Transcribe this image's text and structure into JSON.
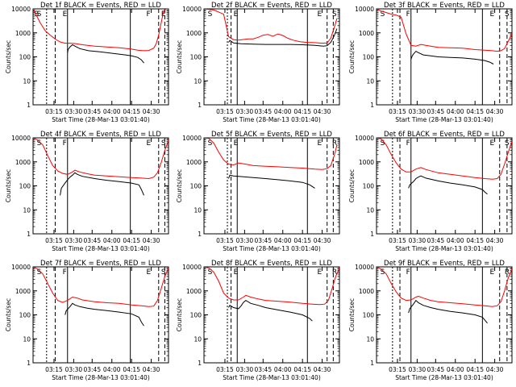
{
  "chart_data": [
    {
      "type": "line",
      "title": "Det 1f BLACK = Events, RED = LLD",
      "xlabel": "Start Time (28-Mar-13 03:01:40)",
      "ylabel": "Counts/sec",
      "yscale": "log",
      "ylim": [
        1,
        10000
      ],
      "xlim_min": [
        0,
        110
      ],
      "xtick_labels": [
        "03:15",
        "03:30",
        "03:45",
        "04:00",
        "04:15",
        "04:30"
      ],
      "ytick_labels": [
        "1",
        "10",
        "100",
        "1000",
        "10000"
      ],
      "corner_marks": [
        "S",
        "E",
        "F",
        "E",
        "S"
      ],
      "series": [
        {
          "color": "#000000",
          "x": [
            28,
            28.5,
            30,
            32,
            34,
            38,
            45,
            55,
            65,
            75,
            80,
            85,
            88,
            90
          ],
          "y": [
            150,
            200,
            260,
            320,
            280,
            220,
            180,
            160,
            140,
            120,
            110,
            95,
            75,
            55
          ]
        },
        {
          "color": "#ff0000",
          "x": [
            0,
            3,
            6,
            10,
            14,
            18,
            22,
            26,
            30,
            34,
            40,
            50,
            60,
            70,
            80,
            85,
            90,
            94,
            98,
            100,
            102,
            104,
            106,
            108,
            110
          ],
          "y": [
            10000,
            5000,
            2500,
            1200,
            800,
            550,
            420,
            370,
            370,
            360,
            320,
            280,
            260,
            240,
            210,
            190,
            180,
            185,
            230,
            350,
            800,
            2500,
            8000,
            10000,
            10000
          ]
        }
      ]
    },
    {
      "type": "line",
      "title": "Det 2f BLACK = Events, RED = LLD",
      "xlabel": "Start Time (28-Mar-13 03:01:40)",
      "ylabel": "Counts/sec",
      "yscale": "log",
      "ylim": [
        1,
        10000
      ],
      "xlim_min": [
        0,
        110
      ],
      "xtick_labels": [
        "03:15",
        "03:30",
        "03:45",
        "04:00",
        "04:15",
        "04:30"
      ],
      "ytick_labels": [
        "1",
        "10",
        "100",
        "1000",
        "10000"
      ],
      "corner_marks": [
        "S",
        "E",
        "E",
        "S"
      ],
      "series": [
        {
          "color": "#000000",
          "x": [
            20,
            21,
            24,
            30,
            40,
            50,
            60,
            70,
            80,
            90,
            97,
            100,
            103,
            106,
            108
          ],
          "y": [
            400,
            480,
            380,
            350,
            340,
            330,
            330,
            330,
            320,
            300,
            280,
            290,
            400,
            800,
            1500
          ]
        },
        {
          "color": "#ff0000",
          "x": [
            0,
            8,
            16,
            20,
            24,
            28,
            32,
            36,
            40,
            44,
            48,
            52,
            56,
            60,
            64,
            68,
            72,
            78,
            84,
            90,
            96,
            100,
            103,
            106,
            108
          ],
          "y": [
            10000,
            9000,
            6000,
            700,
            520,
            500,
            530,
            560,
            560,
            650,
            800,
            850,
            720,
            900,
            780,
            600,
            500,
            430,
            400,
            390,
            370,
            380,
            600,
            1800,
            4000
          ]
        }
      ]
    },
    {
      "type": "line",
      "title": "Det 3f BLACK = Events, RED = LLD",
      "xlabel": "Start Time (28-Mar-13 03:01:40)",
      "ylabel": "Counts/sec",
      "yscale": "log",
      "ylim": [
        1,
        10000
      ],
      "xlim_min": [
        0,
        110
      ],
      "xtick_labels": [
        "03:15",
        "03:30",
        "03:45",
        "04:00",
        "04:15",
        "04:30"
      ],
      "ytick_labels": [
        "1",
        "10",
        "100",
        "1000",
        "10000"
      ],
      "corner_marks": [
        "S",
        "F",
        "E",
        "S"
      ],
      "series": [
        {
          "color": "#000000",
          "x": [
            28,
            29,
            30,
            32,
            34,
            38,
            44,
            50,
            60,
            70,
            80,
            88,
            92,
            95
          ],
          "y": [
            80,
            110,
            130,
            170,
            150,
            120,
            110,
            100,
            95,
            90,
            80,
            70,
            60,
            50
          ]
        },
        {
          "color": "#ff0000",
          "x": [
            0,
            4,
            8,
            12,
            16,
            20,
            24,
            28,
            32,
            36,
            40,
            50,
            60,
            70,
            80,
            88,
            94,
            98,
            101,
            104,
            107,
            110
          ],
          "y": [
            10000,
            8000,
            7000,
            6000,
            5500,
            4500,
            900,
            300,
            280,
            330,
            300,
            250,
            240,
            230,
            200,
            190,
            180,
            170,
            180,
            220,
            450,
            900
          ]
        }
      ]
    },
    {
      "type": "line",
      "title": "Det 4f BLACK = Events, RED = LLD",
      "xlabel": "Start Time (28-Mar-13 03:01:40)",
      "ylabel": "Counts/sec",
      "yscale": "log",
      "ylim": [
        1,
        10000
      ],
      "xlim_min": [
        0,
        110
      ],
      "xtick_labels": [
        "03:15",
        "03:30",
        "03:45",
        "04:00",
        "04:15",
        "04:30"
      ],
      "ytick_labels": [
        "1",
        "10",
        "100",
        "1000",
        "10000"
      ],
      "corner_marks": [
        "S",
        "F",
        "E",
        "S"
      ],
      "series": [
        {
          "color": "#000000",
          "x": [
            22,
            23,
            26,
            28,
            30,
            32,
            34,
            36,
            40,
            50,
            60,
            70,
            80,
            86,
            88,
            90
          ],
          "y": [
            40,
            80,
            130,
            180,
            230,
            280,
            350,
            300,
            250,
            200,
            170,
            150,
            130,
            110,
            70,
            40
          ]
        },
        {
          "color": "#ff0000",
          "x": [
            0,
            4,
            8,
            12,
            16,
            20,
            24,
            28,
            32,
            34,
            38,
            44,
            50,
            60,
            70,
            80,
            88,
            94,
            98,
            101,
            104,
            107,
            110
          ],
          "y": [
            10000,
            8000,
            5000,
            1800,
            700,
            420,
            330,
            300,
            380,
            450,
            380,
            320,
            280,
            260,
            240,
            220,
            210,
            200,
            230,
            350,
            900,
            3000,
            8000
          ]
        }
      ]
    },
    {
      "type": "line",
      "title": "Det 5f BLACK = Events, RED = LLD",
      "xlabel": "Start Time (28-Mar-13 03:01:40)",
      "ylabel": "Counts/sec",
      "yscale": "log",
      "ylim": [
        1,
        10000
      ],
      "xlim_min": [
        0,
        110
      ],
      "xtick_labels": [
        "03:15",
        "03:30",
        "03:45",
        "04:00",
        "04:15",
        "04:30"
      ],
      "ytick_labels": [
        "1",
        "10",
        "100",
        "1000",
        "10000"
      ],
      "corner_marks": [
        "S",
        "E",
        "E",
        "R"
      ],
      "series": [
        {
          "color": "#000000",
          "x": [
            20,
            21,
            24,
            28,
            32,
            40,
            50,
            60,
            70,
            80,
            86,
            90
          ],
          "y": [
            200,
            280,
            260,
            250,
            240,
            220,
            200,
            180,
            160,
            140,
            110,
            80
          ]
        },
        {
          "color": "#ff0000",
          "x": [
            0,
            4,
            8,
            12,
            16,
            20,
            24,
            28,
            34,
            40,
            50,
            60,
            70,
            80,
            90,
            96,
            100,
            103,
            106,
            108
          ],
          "y": [
            10000,
            9500,
            6000,
            2500,
            1200,
            800,
            750,
            900,
            800,
            700,
            650,
            620,
            580,
            550,
            500,
            480,
            520,
            700,
            2000,
            5000
          ]
        }
      ]
    },
    {
      "type": "line",
      "title": "Det 6f BLACK = Events, RED = LLD",
      "xlabel": "Start Time (28-Mar-13 03:01:40)",
      "ylabel": "Counts/sec",
      "yscale": "log",
      "ylim": [
        1,
        10000
      ],
      "xlim_min": [
        0,
        110
      ],
      "xtick_labels": [
        "03:15",
        "03:30",
        "03:45",
        "04:00",
        "04:15",
        "04:30"
      ],
      "ytick_labels": [
        "1",
        "10",
        "100",
        "1000",
        "10000"
      ],
      "corner_marks": [
        "S",
        "F",
        "E",
        "S"
      ],
      "series": [
        {
          "color": "#000000",
          "x": [
            26,
            27,
            30,
            32,
            34,
            36,
            40,
            50,
            60,
            70,
            80,
            86,
            88,
            90
          ],
          "y": [
            80,
            110,
            150,
            200,
            230,
            260,
            210,
            160,
            130,
            110,
            90,
            70,
            55,
            45
          ]
        },
        {
          "color": "#ff0000",
          "x": [
            0,
            4,
            8,
            12,
            16,
            20,
            24,
            28,
            32,
            36,
            40,
            50,
            60,
            70,
            80,
            88,
            94,
            98,
            101,
            104,
            107,
            110
          ],
          "y": [
            10000,
            9000,
            5000,
            2000,
            900,
            500,
            380,
            380,
            500,
            580,
            480,
            350,
            300,
            260,
            220,
            200,
            190,
            200,
            300,
            800,
            2500,
            7000
          ]
        }
      ]
    },
    {
      "type": "line",
      "title": "Det 7f BLACK = Events, RED = LLD",
      "xlabel": "Start Time (28-Mar-13 03:01:40)",
      "ylabel": "Counts/sec",
      "yscale": "log",
      "ylim": [
        1,
        10000
      ],
      "xlim_min": [
        0,
        110
      ],
      "xtick_labels": [
        "03:15",
        "03:30",
        "03:45",
        "04:00",
        "04:15",
        "04:30"
      ],
      "ytick_labels": [
        "1",
        "10",
        "100",
        "1000",
        "10000"
      ],
      "corner_marks": [
        "S",
        "F",
        "E",
        "S"
      ],
      "series": [
        {
          "color": "#000000",
          "x": [
            26,
            27,
            30,
            32,
            34,
            38,
            44,
            50,
            60,
            70,
            80,
            86,
            88,
            90
          ],
          "y": [
            100,
            150,
            220,
            300,
            260,
            220,
            190,
            170,
            150,
            130,
            110,
            80,
            50,
            35
          ]
        },
        {
          "color": "#ff0000",
          "x": [
            0,
            4,
            8,
            12,
            16,
            20,
            24,
            28,
            32,
            36,
            40,
            50,
            60,
            70,
            80,
            88,
            94,
            98,
            101,
            104,
            107,
            110
          ],
          "y": [
            10000,
            8000,
            5000,
            2000,
            800,
            400,
            330,
            400,
            550,
            500,
            420,
            350,
            320,
            300,
            260,
            240,
            220,
            230,
            400,
            1200,
            4000,
            9000
          ]
        }
      ]
    },
    {
      "type": "line",
      "title": "Det 8f BLACK = Events, RED = LLD",
      "xlabel": "Start Time (28-Mar-13 03:01:40)",
      "ylabel": "Counts/sec",
      "yscale": "log",
      "ylim": [
        1,
        10000
      ],
      "xlim_min": [
        0,
        110
      ],
      "xtick_labels": [
        "03:15",
        "03:30",
        "03:45",
        "04:00",
        "04:15",
        "04:30"
      ],
      "ytick_labels": [
        "1",
        "10",
        "100",
        "1000",
        "10000"
      ],
      "corner_marks": [
        "S",
        "E",
        "E",
        "R"
      ],
      "series": [
        {
          "color": "#000000",
          "x": [
            20,
            21,
            24,
            28,
            30,
            32,
            34,
            38,
            44,
            50,
            60,
            70,
            80,
            86,
            88
          ],
          "y": [
            200,
            250,
            200,
            180,
            230,
            330,
            400,
            300,
            250,
            200,
            160,
            130,
            100,
            70,
            55
          ]
        },
        {
          "color": "#ff0000",
          "x": [
            0,
            4,
            8,
            12,
            16,
            20,
            24,
            28,
            32,
            34,
            38,
            44,
            50,
            60,
            70,
            80,
            88,
            94,
            98,
            101,
            104,
            107,
            110
          ],
          "y": [
            10000,
            9000,
            6000,
            2500,
            800,
            500,
            420,
            420,
            550,
            650,
            550,
            460,
            400,
            370,
            340,
            300,
            280,
            270,
            280,
            400,
            1200,
            4000,
            9000
          ]
        }
      ]
    },
    {
      "type": "line",
      "title": "Det 9f BLACK = Events, RED = LLD",
      "xlabel": "Start Time (28-Mar-13 03:01:40)",
      "ylabel": "Counts/sec",
      "yscale": "log",
      "ylim": [
        1,
        10000
      ],
      "xlim_min": [
        0,
        110
      ],
      "xtick_labels": [
        "03:15",
        "03:30",
        "03:45",
        "04:00",
        "04:15",
        "04:30"
      ],
      "ytick_labels": [
        "1",
        "10",
        "100",
        "1000",
        "10000"
      ],
      "corner_marks": [
        "S",
        "F",
        "E",
        "R"
      ],
      "series": [
        {
          "color": "#000000",
          "x": [
            26,
            27,
            30,
            32,
            34,
            38,
            44,
            50,
            60,
            70,
            80,
            86,
            88,
            90
          ],
          "y": [
            120,
            180,
            280,
            400,
            320,
            250,
            200,
            170,
            140,
            120,
            100,
            80,
            60,
            45
          ]
        },
        {
          "color": "#ff0000",
          "x": [
            0,
            4,
            8,
            12,
            16,
            20,
            24,
            28,
            32,
            34,
            38,
            44,
            50,
            60,
            70,
            80,
            88,
            94,
            98,
            101,
            104,
            107,
            110
          ],
          "y": [
            10000,
            8000,
            5000,
            2000,
            900,
            500,
            400,
            420,
            550,
            600,
            500,
            400,
            350,
            320,
            290,
            260,
            240,
            220,
            240,
            350,
            1000,
            3500,
            8000
          ]
        }
      ]
    }
  ]
}
